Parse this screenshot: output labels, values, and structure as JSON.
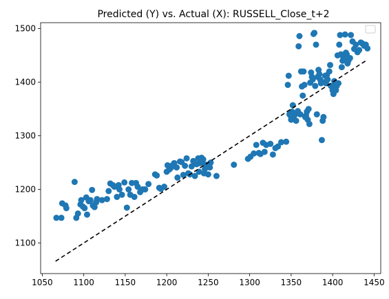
{
  "chart_data": {
    "type": "scatter",
    "title": "Predicted (Y) vs. Actual (X): RUSSELL_Close_t+2",
    "xlabel": "",
    "ylabel": "",
    "xlim": [
      1048,
      1458
    ],
    "ylim": [
      1043,
      1511
    ],
    "xticks": [
      1050,
      1100,
      1150,
      1200,
      1250,
      1300,
      1350,
      1400,
      1450
    ],
    "yticks": [
      1100,
      1200,
      1300,
      1400,
      1500
    ],
    "grid": false,
    "legend": "top-right (empty)",
    "colors": {
      "points": "#1f77b4",
      "reference_line": "#000000"
    },
    "reference_line": {
      "style": "dashed",
      "x": [
        1066,
        1442
      ],
      "y": [
        1066,
        1442
      ]
    },
    "points": [
      [
        1067,
        1147
      ],
      [
        1073,
        1147
      ],
      [
        1074,
        1174
      ],
      [
        1078,
        1170
      ],
      [
        1079,
        1165
      ],
      [
        1089,
        1214
      ],
      [
        1091,
        1147
      ],
      [
        1093,
        1155
      ],
      [
        1096,
        1172
      ],
      [
        1097,
        1180
      ],
      [
        1099,
        1168
      ],
      [
        1101,
        1165
      ],
      [
        1103,
        1185
      ],
      [
        1104,
        1153
      ],
      [
        1106,
        1178
      ],
      [
        1108,
        1180
      ],
      [
        1110,
        1199
      ],
      [
        1111,
        1170
      ],
      [
        1113,
        1167
      ],
      [
        1115,
        1176
      ],
      [
        1116,
        1182
      ],
      [
        1122,
        1180
      ],
      [
        1128,
        1182
      ],
      [
        1130,
        1197
      ],
      [
        1132,
        1211
      ],
      [
        1135,
        1208
      ],
      [
        1137,
        1205
      ],
      [
        1140,
        1186
      ],
      [
        1142,
        1208
      ],
      [
        1143,
        1200
      ],
      [
        1146,
        1190
      ],
      [
        1149,
        1213
      ],
      [
        1152,
        1166
      ],
      [
        1154,
        1200
      ],
      [
        1156,
        1190
      ],
      [
        1158,
        1212
      ],
      [
        1161,
        1186
      ],
      [
        1163,
        1212
      ],
      [
        1165,
        1205
      ],
      [
        1168,
        1195
      ],
      [
        1171,
        1200
      ],
      [
        1174,
        1200
      ],
      [
        1178,
        1210
      ],
      [
        1186,
        1228
      ],
      [
        1188,
        1226
      ],
      [
        1191,
        1203
      ],
      [
        1193,
        1201
      ],
      [
        1197,
        1205
      ],
      [
        1200,
        1233
      ],
      [
        1201,
        1245
      ],
      [
        1203,
        1237
      ],
      [
        1205,
        1240
      ],
      [
        1207,
        1245
      ],
      [
        1209,
        1249
      ],
      [
        1212,
        1241
      ],
      [
        1213,
        1222
      ],
      [
        1216,
        1252
      ],
      [
        1218,
        1251
      ],
      [
        1220,
        1227
      ],
      [
        1222,
        1244
      ],
      [
        1224,
        1258
      ],
      [
        1226,
        1230
      ],
      [
        1228,
        1228
      ],
      [
        1230,
        1243
      ],
      [
        1232,
        1253
      ],
      [
        1234,
        1225
      ],
      [
        1236,
        1247
      ],
      [
        1238,
        1258
      ],
      [
        1239,
        1233
      ],
      [
        1240,
        1249
      ],
      [
        1241,
        1255
      ],
      [
        1242,
        1259
      ],
      [
        1243,
        1250
      ],
      [
        1244,
        1256
      ],
      [
        1245,
        1230
      ],
      [
        1246,
        1238
      ],
      [
        1248,
        1246
      ],
      [
        1250,
        1228
      ],
      [
        1252,
        1241
      ],
      [
        1253,
        1250
      ],
      [
        1260,
        1225
      ],
      [
        1281,
        1246
      ],
      [
        1298,
        1257
      ],
      [
        1301,
        1261
      ],
      [
        1305,
        1267
      ],
      [
        1308,
        1283
      ],
      [
        1311,
        1268
      ],
      [
        1313,
        1266
      ],
      [
        1316,
        1287
      ],
      [
        1318,
        1270
      ],
      [
        1320,
        1283
      ],
      [
        1325,
        1285
      ],
      [
        1328,
        1265
      ],
      [
        1331,
        1277
      ],
      [
        1334,
        1280
      ],
      [
        1338,
        1288
      ],
      [
        1344,
        1289
      ],
      [
        1346,
        1395
      ],
      [
        1347,
        1412
      ],
      [
        1348,
        1340
      ],
      [
        1349,
        1338
      ],
      [
        1350,
        1330
      ],
      [
        1351,
        1345
      ],
      [
        1352,
        1357
      ],
      [
        1353,
        1334
      ],
      [
        1354,
        1339
      ],
      [
        1355,
        1340
      ],
      [
        1356,
        1328
      ],
      [
        1357,
        1342
      ],
      [
        1358,
        1346
      ],
      [
        1359,
        1467
      ],
      [
        1360,
        1486
      ],
      [
        1361,
        1340
      ],
      [
        1362,
        1420
      ],
      [
        1363,
        1392
      ],
      [
        1364,
        1375
      ],
      [
        1365,
        1420
      ],
      [
        1366,
        1395
      ],
      [
        1367,
        1335
      ],
      [
        1368,
        1338
      ],
      [
        1369,
        1345
      ],
      [
        1370,
        1330
      ],
      [
        1371,
        1350
      ],
      [
        1372,
        1322
      ],
      [
        1373,
        1399
      ],
      [
        1374,
        1418
      ],
      [
        1375,
        1410
      ],
      [
        1376,
        1405
      ],
      [
        1377,
        1490
      ],
      [
        1378,
        1492
      ],
      [
        1379,
        1393
      ],
      [
        1380,
        1470
      ],
      [
        1381,
        1340
      ],
      [
        1382,
        1410
      ],
      [
        1383,
        1423
      ],
      [
        1384,
        1415
      ],
      [
        1385,
        1405
      ],
      [
        1386,
        1398
      ],
      [
        1387,
        1292
      ],
      [
        1388,
        1328
      ],
      [
        1389,
        1335
      ],
      [
        1390,
        1400
      ],
      [
        1391,
        1412
      ],
      [
        1392,
        1398
      ],
      [
        1393,
        1413
      ],
      [
        1394,
        1405
      ],
      [
        1396,
        1420
      ],
      [
        1397,
        1432
      ],
      [
        1398,
        1393
      ],
      [
        1399,
        1392
      ],
      [
        1400,
        1385
      ],
      [
        1401,
        1378
      ],
      [
        1402,
        1402
      ],
      [
        1403,
        1395
      ],
      [
        1404,
        1385
      ],
      [
        1405,
        1393
      ],
      [
        1406,
        1450
      ],
      [
        1407,
        1398
      ],
      [
        1408,
        1470
      ],
      [
        1409,
        1488
      ],
      [
        1410,
        1452
      ],
      [
        1411,
        1428
      ],
      [
        1412,
        1440
      ],
      [
        1413,
        1446
      ],
      [
        1414,
        1447
      ],
      [
        1415,
        1489
      ],
      [
        1416,
        1455
      ],
      [
        1417,
        1452
      ],
      [
        1418,
        1435
      ],
      [
        1419,
        1440
      ],
      [
        1421,
        1445
      ],
      [
        1422,
        1488
      ],
      [
        1424,
        1476
      ],
      [
        1426,
        1462
      ],
      [
        1428,
        1470
      ],
      [
        1430,
        1456
      ],
      [
        1432,
        1460
      ],
      [
        1434,
        1474
      ],
      [
        1436,
        1472
      ],
      [
        1438,
        1468
      ],
      [
        1440,
        1470
      ],
      [
        1442,
        1463
      ]
    ]
  }
}
